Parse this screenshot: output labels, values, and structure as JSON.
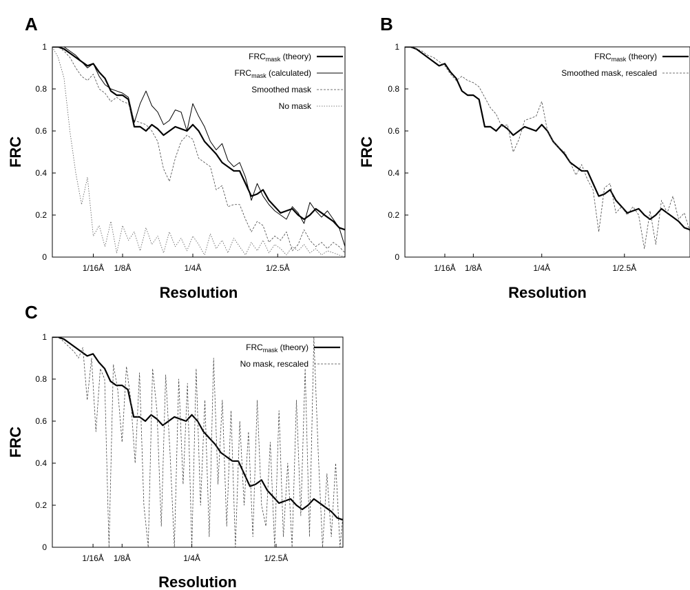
{
  "figure": {
    "panels": [
      "A",
      "B",
      "C"
    ]
  },
  "chart_data": [
    {
      "panel": "A",
      "type": "line",
      "xlabel": "Resolution",
      "ylabel": "FRC",
      "ylim": [
        0,
        1
      ],
      "xlim": [
        0,
        100
      ],
      "yticks": [
        "0",
        "0.2",
        "0.4",
        "0.6",
        "0.8",
        "1"
      ],
      "xticks": [
        {
          "label": "1/16Å",
          "x": 14
        },
        {
          "label": "1/8Å",
          "x": 24
        },
        {
          "label": "1/4Å",
          "x": 48
        },
        {
          "label": "1/2.5Å",
          "x": 77
        }
      ],
      "grid": false,
      "legend_position": "top-right",
      "series": [
        {
          "name": "FRC",
          "name_sub": "mask",
          "name_suffix": " (theory)",
          "style": "thick",
          "x": [
            0,
            2,
            4,
            6,
            8,
            10,
            12,
            14,
            16,
            18,
            20,
            22,
            24,
            26,
            28,
            30,
            32,
            34,
            36,
            38,
            40,
            42,
            44,
            46,
            48,
            50,
            52,
            54,
            56,
            58,
            60,
            62,
            64,
            66,
            68,
            70,
            72,
            74,
            76,
            78,
            80,
            82,
            84,
            86,
            88,
            90,
            92,
            94,
            96,
            98,
            100
          ],
          "values": [
            1.0,
            1.0,
            0.99,
            0.97,
            0.95,
            0.93,
            0.91,
            0.92,
            0.88,
            0.85,
            0.79,
            0.77,
            0.77,
            0.75,
            0.62,
            0.62,
            0.6,
            0.63,
            0.61,
            0.58,
            0.6,
            0.62,
            0.61,
            0.6,
            0.63,
            0.6,
            0.55,
            0.52,
            0.49,
            0.45,
            0.43,
            0.41,
            0.41,
            0.35,
            0.29,
            0.3,
            0.32,
            0.27,
            0.24,
            0.21,
            0.22,
            0.23,
            0.2,
            0.18,
            0.2,
            0.23,
            0.21,
            0.19,
            0.17,
            0.14,
            0.13
          ]
        },
        {
          "name": "FRC",
          "name_sub": "mask",
          "name_suffix": " (calculated)",
          "style": "thin",
          "x": [
            0,
            2,
            4,
            6,
            8,
            10,
            12,
            14,
            16,
            18,
            20,
            22,
            24,
            26,
            28,
            30,
            32,
            34,
            36,
            38,
            40,
            42,
            44,
            46,
            48,
            50,
            52,
            54,
            56,
            58,
            60,
            62,
            64,
            66,
            68,
            70,
            72,
            74,
            76,
            78,
            80,
            82,
            84,
            86,
            88,
            90,
            92,
            94,
            96,
            98,
            100
          ],
          "values": [
            1.0,
            1.0,
            1.0,
            0.98,
            0.96,
            0.93,
            0.9,
            0.92,
            0.86,
            0.82,
            0.8,
            0.79,
            0.78,
            0.76,
            0.64,
            0.73,
            0.79,
            0.72,
            0.69,
            0.63,
            0.65,
            0.7,
            0.69,
            0.6,
            0.73,
            0.67,
            0.62,
            0.55,
            0.51,
            0.54,
            0.46,
            0.43,
            0.45,
            0.38,
            0.27,
            0.35,
            0.29,
            0.25,
            0.22,
            0.2,
            0.18,
            0.24,
            0.21,
            0.16,
            0.26,
            0.22,
            0.19,
            0.22,
            0.18,
            0.14,
            0.05
          ]
        },
        {
          "name": "Smoothed mask",
          "style": "dashed",
          "x": [
            0,
            2,
            4,
            6,
            8,
            10,
            12,
            14,
            16,
            18,
            20,
            22,
            24,
            26,
            28,
            30,
            32,
            34,
            36,
            38,
            40,
            42,
            44,
            46,
            48,
            50,
            52,
            54,
            56,
            58,
            60,
            62,
            64,
            66,
            68,
            70,
            72,
            74,
            76,
            78,
            80,
            82,
            84,
            86,
            88,
            90,
            92,
            94,
            96,
            98,
            100
          ],
          "values": [
            1.0,
            1.0,
            0.98,
            0.95,
            0.9,
            0.86,
            0.84,
            0.87,
            0.8,
            0.78,
            0.74,
            0.76,
            0.74,
            0.73,
            0.65,
            0.64,
            0.63,
            0.6,
            0.55,
            0.42,
            0.36,
            0.47,
            0.55,
            0.58,
            0.56,
            0.47,
            0.45,
            0.43,
            0.32,
            0.34,
            0.24,
            0.25,
            0.25,
            0.18,
            0.12,
            0.17,
            0.15,
            0.07,
            0.1,
            0.08,
            0.12,
            0.03,
            0.06,
            0.13,
            0.08,
            0.05,
            0.07,
            0.04,
            0.07,
            0.05,
            0.02
          ]
        },
        {
          "name": "No mask",
          "style": "dotted",
          "x": [
            0,
            2,
            4,
            6,
            8,
            10,
            12,
            14,
            16,
            18,
            20,
            22,
            24,
            26,
            28,
            30,
            32,
            34,
            36,
            38,
            40,
            42,
            44,
            46,
            48,
            50,
            52,
            54,
            56,
            58,
            60,
            62,
            64,
            66,
            68,
            70,
            72,
            74,
            76,
            78,
            80,
            82,
            84,
            86,
            88,
            90,
            92,
            94,
            96,
            98,
            100
          ],
          "values": [
            1.0,
            0.95,
            0.85,
            0.6,
            0.4,
            0.25,
            0.38,
            0.1,
            0.15,
            0.05,
            0.17,
            0.02,
            0.15,
            0.08,
            0.12,
            0.03,
            0.14,
            0.06,
            0.1,
            0.02,
            0.12,
            0.05,
            0.09,
            0.03,
            0.1,
            0.06,
            0.01,
            0.11,
            0.04,
            0.08,
            0.02,
            0.09,
            0.05,
            0.01,
            0.07,
            0.03,
            0.08,
            0.02,
            0.06,
            0.04,
            0.01,
            0.05,
            0.03,
            0.06,
            0.02,
            0.04,
            0.01,
            0.03,
            0.02,
            0.01,
            0.0
          ]
        }
      ]
    },
    {
      "panel": "B",
      "type": "line",
      "xlabel": "Resolution",
      "ylabel": "FRC",
      "ylim": [
        0,
        1
      ],
      "xlim": [
        0,
        100
      ],
      "yticks": [
        "0",
        "0.2",
        "0.4",
        "0.6",
        "0.8",
        "1"
      ],
      "xticks": [
        {
          "label": "1/16Å",
          "x": 14
        },
        {
          "label": "1/8Å",
          "x": 24
        },
        {
          "label": "1/4Å",
          "x": 48
        },
        {
          "label": "1/2.5Å",
          "x": 77
        }
      ],
      "grid": false,
      "legend_position": "top-right",
      "series": [
        {
          "name": "FRC",
          "name_sub": "mask",
          "name_suffix": " (theory)",
          "style": "thick",
          "x": [
            0,
            2,
            4,
            6,
            8,
            10,
            12,
            14,
            16,
            18,
            20,
            22,
            24,
            26,
            28,
            30,
            32,
            34,
            36,
            38,
            40,
            42,
            44,
            46,
            48,
            50,
            52,
            54,
            56,
            58,
            60,
            62,
            64,
            66,
            68,
            70,
            72,
            74,
            76,
            78,
            80,
            82,
            84,
            86,
            88,
            90,
            92,
            94,
            96,
            98,
            100
          ],
          "values": [
            1.0,
            1.0,
            0.99,
            0.97,
            0.95,
            0.93,
            0.91,
            0.92,
            0.88,
            0.85,
            0.79,
            0.77,
            0.77,
            0.75,
            0.62,
            0.62,
            0.6,
            0.63,
            0.61,
            0.58,
            0.6,
            0.62,
            0.61,
            0.6,
            0.63,
            0.6,
            0.55,
            0.52,
            0.49,
            0.45,
            0.43,
            0.41,
            0.41,
            0.35,
            0.29,
            0.3,
            0.32,
            0.27,
            0.24,
            0.21,
            0.22,
            0.23,
            0.2,
            0.18,
            0.2,
            0.23,
            0.21,
            0.19,
            0.17,
            0.14,
            0.13
          ]
        },
        {
          "name": "Smoothed mask, rescaled",
          "style": "dashed",
          "x": [
            0,
            2,
            4,
            6,
            8,
            10,
            12,
            14,
            16,
            18,
            20,
            22,
            24,
            26,
            28,
            30,
            32,
            34,
            36,
            38,
            40,
            42,
            44,
            46,
            48,
            50,
            52,
            54,
            56,
            58,
            60,
            62,
            64,
            66,
            68,
            70,
            72,
            74,
            76,
            78,
            80,
            82,
            84,
            86,
            88,
            90,
            92,
            94,
            96,
            98,
            100
          ],
          "values": [
            1.0,
            1.0,
            0.99,
            0.98,
            0.96,
            0.95,
            0.93,
            0.91,
            0.87,
            0.84,
            0.86,
            0.84,
            0.83,
            0.81,
            0.76,
            0.71,
            0.68,
            0.62,
            0.63,
            0.5,
            0.56,
            0.65,
            0.66,
            0.67,
            0.74,
            0.6,
            0.55,
            0.52,
            0.5,
            0.45,
            0.39,
            0.44,
            0.37,
            0.32,
            0.12,
            0.33,
            0.35,
            0.21,
            0.24,
            0.2,
            0.24,
            0.2,
            0.04,
            0.22,
            0.06,
            0.27,
            0.21,
            0.29,
            0.18,
            0.21,
            0.12
          ]
        }
      ]
    },
    {
      "panel": "C",
      "type": "line",
      "xlabel": "Resolution",
      "ylabel": "FRC",
      "ylim": [
        0,
        1
      ],
      "xlim": [
        0,
        100
      ],
      "yticks": [
        "0",
        "0.2",
        "0.4",
        "0.6",
        "0.8",
        "1"
      ],
      "xticks": [
        {
          "label": "1/16Å",
          "x": 14
        },
        {
          "label": "1/8Å",
          "x": 24
        },
        {
          "label": "1/4Å",
          "x": 48
        },
        {
          "label": "1/2.5Å",
          "x": 77
        }
      ],
      "grid": false,
      "legend_position": "top-right",
      "series": [
        {
          "name": "FRC",
          "name_sub": "mask",
          "name_suffix": " (theory)",
          "style": "thick",
          "x": [
            0,
            2,
            4,
            6,
            8,
            10,
            12,
            14,
            16,
            18,
            20,
            22,
            24,
            26,
            28,
            30,
            32,
            34,
            36,
            38,
            40,
            42,
            44,
            46,
            48,
            50,
            52,
            54,
            56,
            58,
            60,
            62,
            64,
            66,
            68,
            70,
            72,
            74,
            76,
            78,
            80,
            82,
            84,
            86,
            88,
            90,
            92,
            94,
            96,
            98,
            100
          ],
          "values": [
            1.0,
            1.0,
            0.99,
            0.97,
            0.95,
            0.93,
            0.91,
            0.92,
            0.88,
            0.85,
            0.79,
            0.77,
            0.77,
            0.75,
            0.62,
            0.62,
            0.6,
            0.63,
            0.61,
            0.58,
            0.6,
            0.62,
            0.61,
            0.6,
            0.63,
            0.6,
            0.55,
            0.52,
            0.49,
            0.45,
            0.43,
            0.41,
            0.41,
            0.35,
            0.29,
            0.3,
            0.32,
            0.27,
            0.24,
            0.21,
            0.22,
            0.23,
            0.2,
            0.18,
            0.2,
            0.23,
            0.21,
            0.19,
            0.17,
            0.14,
            0.13
          ]
        },
        {
          "name": "No mask, rescaled",
          "style": "dashed",
          "x": [
            0,
            1.5,
            3,
            4.5,
            6,
            7.5,
            9,
            10.5,
            12,
            13.5,
            15,
            16.5,
            18,
            19.5,
            21,
            22.5,
            24,
            25.5,
            27,
            28.5,
            30,
            31.5,
            33,
            34.5,
            36,
            37.5,
            39,
            40.5,
            42,
            43.5,
            45,
            46.5,
            48,
            49.5,
            51,
            52.5,
            54,
            55.5,
            57,
            58.5,
            60,
            61.5,
            63,
            64.5,
            66,
            67.5,
            69,
            70.5,
            72,
            73.5,
            75,
            76.5,
            78,
            79.5,
            81,
            82.5,
            84,
            85.5,
            87,
            88.5,
            90,
            91.5,
            93,
            94.5,
            96,
            97.5,
            99,
            100
          ],
          "values": [
            1.0,
            1.0,
            0.99,
            0.97,
            0.95,
            0.93,
            0.9,
            0.95,
            0.7,
            0.9,
            0.55,
            0.85,
            0.8,
            0.0,
            0.87,
            0.75,
            0.5,
            0.86,
            0.7,
            0.4,
            0.83,
            0.2,
            0.0,
            0.85,
            0.65,
            0.1,
            0.82,
            0.45,
            0.0,
            0.8,
            0.3,
            0.78,
            0.0,
            0.85,
            0.2,
            0.7,
            0.05,
            0.9,
            0.3,
            0.7,
            0.1,
            0.65,
            0.0,
            0.6,
            0.2,
            0.55,
            0.05,
            0.7,
            0.2,
            0.1,
            0.5,
            0.0,
            0.65,
            0.05,
            0.4,
            0.0,
            0.7,
            0.15,
            0.85,
            0.05,
            1.0,
            0.45,
            0.0,
            0.35,
            0.05,
            0.4,
            0.0,
            0.15
          ]
        }
      ]
    }
  ]
}
